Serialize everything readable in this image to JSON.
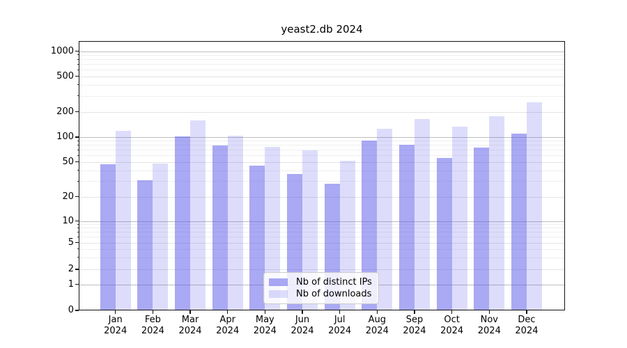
{
  "title": "yeast2.db 2024",
  "chart_data": {
    "type": "bar",
    "title": "yeast2.db 2024",
    "categories": [
      "Jan 2024",
      "Feb 2024",
      "Mar 2024",
      "Apr 2024",
      "May 2024",
      "Jun 2024",
      "Jul 2024",
      "Aug 2024",
      "Sep 2024",
      "Oct 2024",
      "Nov 2024",
      "Dec 2024"
    ],
    "x_tick_months": [
      "Jan",
      "Feb",
      "Mar",
      "Apr",
      "May",
      "Jun",
      "Jul",
      "Aug",
      "Sep",
      "Oct",
      "Nov",
      "Dec"
    ],
    "x_tick_year": "2024",
    "series": [
      {
        "name": "Nb of distinct IPs",
        "color": "rgba(83,83,233,0.5)",
        "values": [
          47,
          31,
          102,
          79,
          45,
          36,
          28,
          90,
          80,
          56,
          75,
          109
        ]
      },
      {
        "name": "Nb of downloads",
        "color": "rgba(83,83,233,0.2)",
        "values": [
          118,
          48,
          158,
          104,
          76,
          69,
          51,
          126,
          163,
          134,
          176,
          255
        ]
      }
    ],
    "yscale": "symlog",
    "ylim": [
      0,
      1270
    ],
    "y_tick_values": [
      0,
      1,
      2,
      5,
      10,
      20,
      50,
      100,
      200,
      500,
      1000
    ],
    "y_tick_labels": [
      "0",
      "1",
      "2",
      "5",
      "10",
      "20",
      "50",
      "100",
      "200",
      "500",
      "1000"
    ],
    "y_minor_values": [
      3,
      4,
      6,
      7,
      8,
      9,
      30,
      40,
      60,
      70,
      80,
      90,
      300,
      400,
      600,
      700,
      800,
      900
    ],
    "grid": true,
    "legend_position": "lower center"
  },
  "colors": {
    "bar_distinct_ips": "rgba(83,83,233,0.5)",
    "bar_downloads": "rgba(83,83,233,0.2)",
    "grid_major": "#bdbdbd",
    "grid_labeled": "#e3e3e3",
    "grid_minor": "#efefef",
    "spine": "#111111",
    "legend_border": "#cbcbcb"
  }
}
